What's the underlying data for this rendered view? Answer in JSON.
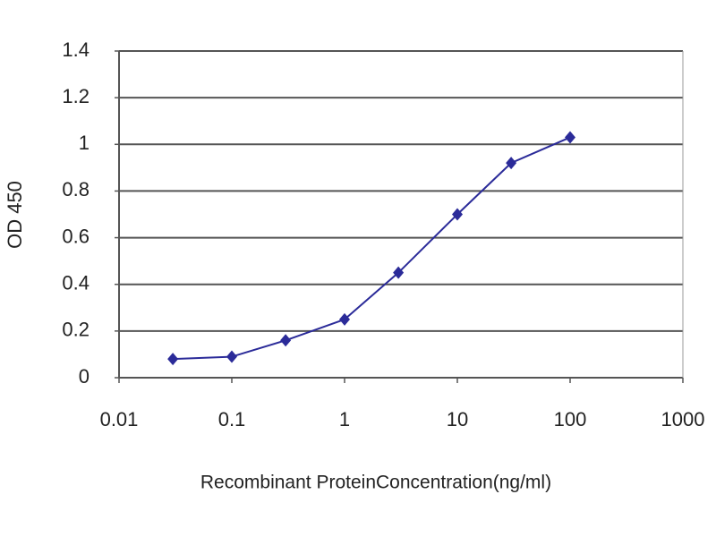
{
  "chart_data": {
    "type": "line",
    "xlabel": "Recombinant ProteinConcentration(ng/ml)",
    "ylabel": "OD 450",
    "x": [
      0.03,
      0.1,
      0.3,
      1,
      3,
      10,
      30,
      100
    ],
    "series": [
      {
        "name": "OD 450",
        "color": "#2b2b99",
        "values": [
          0.08,
          0.09,
          0.16,
          0.25,
          0.45,
          0.7,
          0.92,
          1.03
        ]
      }
    ],
    "xscale": "log",
    "xlim": [
      0.01,
      1000
    ],
    "xticks": [
      0.01,
      0.1,
      1,
      10,
      100,
      1000
    ],
    "ylim": [
      0,
      1.4
    ],
    "yticks": [
      0,
      0.2,
      0.4,
      0.6,
      0.8,
      1,
      1.2,
      1.4
    ],
    "grid": true
  }
}
